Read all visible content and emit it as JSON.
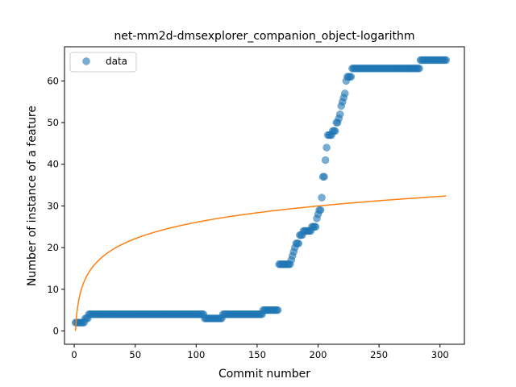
{
  "chart_data": {
    "type": "scatter",
    "title": "net-mm2d-dmsexplorer_companion_object-logarithm",
    "xlabel": "Commit number",
    "ylabel": "Number of instance of a feature",
    "xlim": [
      -8,
      320
    ],
    "ylim": [
      -3.2,
      68.2
    ],
    "xticks": [
      0,
      50,
      100,
      150,
      200,
      250,
      300
    ],
    "yticks": [
      0,
      10,
      20,
      30,
      40,
      50,
      60
    ],
    "grid": false,
    "legend": {
      "position": "top-left",
      "entries": [
        "data"
      ]
    },
    "colors": {
      "data": "#1f77b4",
      "fit": "#ff7f0e"
    },
    "series": [
      {
        "name": "data",
        "kind": "scatter",
        "runs": [
          {
            "from": 1,
            "to": 8,
            "y": 2
          },
          {
            "from": 9,
            "to": 11,
            "y": 3
          },
          {
            "from": 12,
            "to": 106,
            "y": 4
          },
          {
            "from": 107,
            "to": 121,
            "y": 3
          },
          {
            "from": 122,
            "to": 154,
            "y": 4
          },
          {
            "from": 155,
            "to": 167,
            "y": 5
          },
          {
            "from": 168,
            "to": 177,
            "y": 16
          }
        ],
        "points": [
          [
            178,
            17
          ],
          [
            179,
            18
          ],
          [
            180,
            19
          ],
          [
            181,
            20
          ],
          [
            182,
            21
          ],
          [
            183,
            21
          ],
          [
            184,
            21
          ],
          [
            185,
            23
          ],
          [
            186,
            23
          ],
          [
            187,
            23
          ],
          [
            188,
            24
          ],
          [
            189,
            24
          ],
          [
            190,
            24
          ],
          [
            191,
            24
          ],
          [
            192,
            24
          ],
          [
            193,
            24
          ],
          [
            194,
            24
          ],
          [
            195,
            25
          ],
          [
            196,
            25
          ],
          [
            197,
            25
          ],
          [
            198,
            25
          ],
          [
            199,
            27
          ],
          [
            200,
            28
          ],
          [
            201,
            29
          ],
          [
            202,
            29
          ],
          [
            203,
            32
          ],
          [
            204,
            37
          ],
          [
            205,
            37
          ],
          [
            206,
            41
          ],
          [
            207,
            44
          ],
          [
            208,
            47
          ],
          [
            209,
            47
          ],
          [
            210,
            47
          ],
          [
            211,
            47
          ],
          [
            212,
            48
          ],
          [
            213,
            48
          ],
          [
            214,
            48
          ],
          [
            215,
            50
          ],
          [
            216,
            50
          ],
          [
            217,
            51
          ],
          [
            218,
            52
          ],
          [
            219,
            54
          ],
          [
            220,
            55
          ],
          [
            221,
            56
          ],
          [
            222,
            57
          ],
          [
            223,
            60
          ],
          [
            224,
            61
          ],
          [
            225,
            61
          ],
          [
            226,
            61
          ],
          [
            227,
            61
          ]
        ],
        "runs_after": [
          {
            "from": 228,
            "to": 283,
            "y": 63
          },
          {
            "from": 284,
            "to": 305,
            "y": 65
          }
        ]
      },
      {
        "name": "",
        "kind": "line",
        "model": "logarithm",
        "x_range": [
          1,
          305
        ],
        "coefficient": 5.66
      }
    ]
  }
}
